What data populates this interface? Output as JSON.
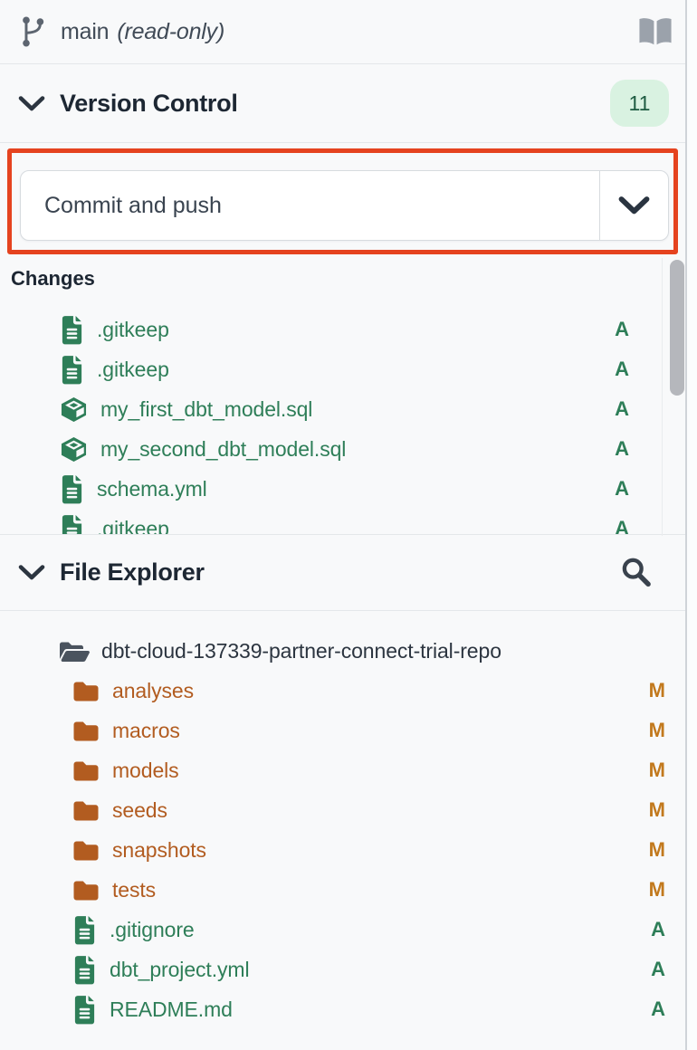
{
  "topbar": {
    "branch_name": "main",
    "branch_mode": "(read-only)"
  },
  "version_control": {
    "title": "Version Control",
    "changes_count": "11",
    "commit_button_label": "Commit and push",
    "changes_title": "Changes",
    "changes": [
      {
        "name": ".gitkeep",
        "icon": "doc-icon",
        "status": "A"
      },
      {
        "name": ".gitkeep",
        "icon": "doc-icon",
        "status": "A"
      },
      {
        "name": "my_first_dbt_model.sql",
        "icon": "model-icon",
        "status": "A"
      },
      {
        "name": "my_second_dbt_model.sql",
        "icon": "model-icon",
        "status": "A"
      },
      {
        "name": "schema.yml",
        "icon": "doc-icon",
        "status": "A"
      },
      {
        "name": ".gitkeep",
        "icon": "doc-icon",
        "status": "A"
      }
    ]
  },
  "file_explorer": {
    "title": "File Explorer",
    "root": {
      "name": "dbt-cloud-137339-partner-connect-trial-repo",
      "icon": "folder-open-icon"
    },
    "items": [
      {
        "name": "analyses",
        "icon": "folder-icon",
        "status": "M"
      },
      {
        "name": "macros",
        "icon": "folder-icon",
        "status": "M"
      },
      {
        "name": "models",
        "icon": "folder-icon",
        "status": "M"
      },
      {
        "name": "seeds",
        "icon": "folder-icon",
        "status": "M"
      },
      {
        "name": "snapshots",
        "icon": "folder-icon",
        "status": "M"
      },
      {
        "name": "tests",
        "icon": "folder-icon",
        "status": "M"
      },
      {
        "name": ".gitignore",
        "icon": "doc-icon",
        "status": "A"
      },
      {
        "name": "dbt_project.yml",
        "icon": "doc-icon",
        "status": "A"
      },
      {
        "name": "README.md",
        "icon": "doc-icon",
        "status": "A"
      }
    ]
  },
  "colors": {
    "added_green": "#2e7e58",
    "modified_orange": "#b25c20",
    "modified_badge_orange": "#c2791d",
    "annotation_red": "#e5431f",
    "count_badge_bg": "#d9f2e1",
    "count_badge_text": "#1f5c42"
  }
}
